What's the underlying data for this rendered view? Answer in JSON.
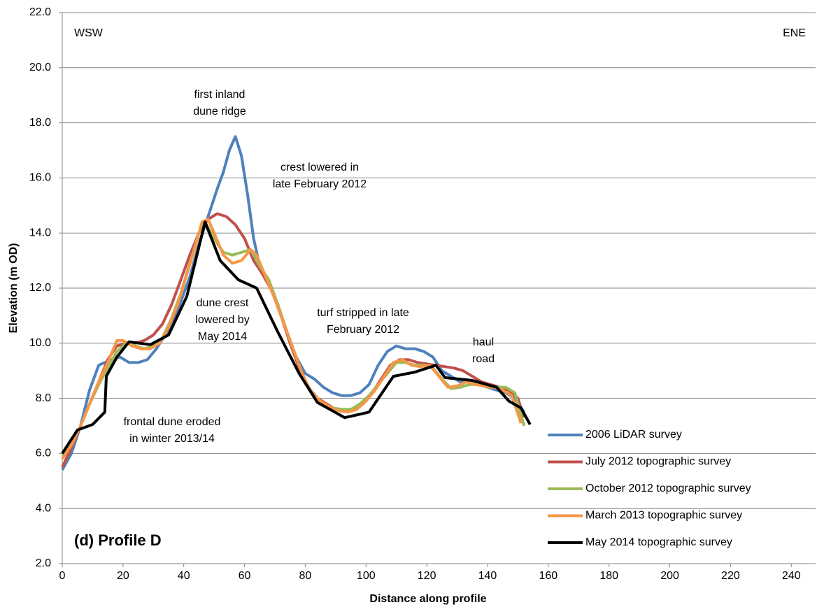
{
  "chart_data": {
    "type": "line",
    "x_label": "Distance along profile",
    "y_label": "Elevation (m OD)",
    "panel_label": "(d) Profile D",
    "xlim": [
      0,
      248
    ],
    "ylim": [
      2,
      22
    ],
    "xticks": [
      0,
      20,
      40,
      60,
      80,
      100,
      120,
      140,
      160,
      180,
      200,
      220,
      240
    ],
    "yticks": [
      {
        "value": 2,
        "label": "2.0"
      },
      {
        "value": 4,
        "label": "4.0"
      },
      {
        "value": 6,
        "label": "6.0"
      },
      {
        "value": 8,
        "label": "8.0"
      },
      {
        "value": 10,
        "label": "10.0"
      },
      {
        "value": 12,
        "label": "12.0"
      },
      {
        "value": 14,
        "label": "14.0"
      },
      {
        "value": 16,
        "label": "16.0"
      },
      {
        "value": 18,
        "label": "18.0"
      },
      {
        "value": 20,
        "label": "20.0"
      },
      {
        "value": 22,
        "label": "22.0"
      }
    ],
    "grid": true,
    "legend": "lower right",
    "annotations": [
      {
        "lines": [
          "WSW"
        ]
      },
      {
        "lines": [
          "ENE"
        ]
      },
      {
        "lines": [
          "first inland",
          "dune ridge"
        ]
      },
      {
        "lines": [
          "crest lowered in",
          "late February 2012"
        ]
      },
      {
        "lines": [
          "dune crest",
          "lowered by",
          "May 2014"
        ]
      },
      {
        "lines": [
          "turf stripped in late",
          "February 2012"
        ]
      },
      {
        "lines": [
          "haul",
          "road"
        ]
      },
      {
        "lines": [
          "frontal dune eroded",
          "in winter 2013/14"
        ]
      }
    ],
    "series": [
      {
        "name": "2006 LiDAR survey",
        "color": "#4f81bd",
        "x": [
          0,
          3,
          6,
          9,
          12,
          16,
          19,
          22,
          25,
          28,
          31,
          35,
          38,
          42,
          45,
          48,
          51,
          53,
          55,
          57,
          59,
          61,
          63,
          65,
          68,
          71,
          74,
          77,
          80,
          83,
          86,
          89,
          92,
          95,
          98,
          101,
          104,
          107,
          110,
          113,
          116,
          119,
          122,
          125,
          128,
          131,
          134,
          137,
          140,
          143,
          146,
          149,
          152
        ],
        "values": [
          5.4,
          6.0,
          7.0,
          8.3,
          9.2,
          9.4,
          9.5,
          9.3,
          9.3,
          9.4,
          9.8,
          10.5,
          11.2,
          12.4,
          13.6,
          14.6,
          15.6,
          16.2,
          17.0,
          17.5,
          16.8,
          15.4,
          13.8,
          12.8,
          12.2,
          11.4,
          10.4,
          9.5,
          8.9,
          8.7,
          8.4,
          8.2,
          8.1,
          8.1,
          8.2,
          8.5,
          9.2,
          9.7,
          9.9,
          9.8,
          9.8,
          9.7,
          9.5,
          9.0,
          8.8,
          8.6,
          8.6,
          8.5,
          8.4,
          8.3,
          8.2,
          8.0,
          7.5
        ]
      },
      {
        "name": "July 2012 topographic survey",
        "color": "#c0504d",
        "x": [
          0,
          3,
          6,
          9,
          12,
          15,
          18,
          21,
          24,
          27,
          30,
          33,
          36,
          39,
          42,
          45,
          48,
          51,
          54,
          57,
          60,
          63,
          66,
          69,
          72,
          75,
          78,
          81,
          84,
          87,
          90,
          93,
          96,
          99,
          102,
          105,
          108,
          111,
          114,
          117,
          120,
          123,
          126,
          129,
          132,
          135,
          138,
          141,
          144,
          147,
          150,
          152
        ],
        "values": [
          5.5,
          6.2,
          7.0,
          7.8,
          8.6,
          9.4,
          9.9,
          10.0,
          10.0,
          10.1,
          10.3,
          10.7,
          11.4,
          12.3,
          13.2,
          14.0,
          14.5,
          14.7,
          14.6,
          14.3,
          13.8,
          13.0,
          12.5,
          11.9,
          11.0,
          10.0,
          9.1,
          8.4,
          8.0,
          7.8,
          7.6,
          7.55,
          7.6,
          7.8,
          8.2,
          8.7,
          9.2,
          9.4,
          9.4,
          9.3,
          9.25,
          9.2,
          9.15,
          9.1,
          9.0,
          8.8,
          8.6,
          8.5,
          8.4,
          8.3,
          8.0,
          7.3
        ]
      },
      {
        "name": "October 2012 topographic survey",
        "color": "#9bbb59",
        "x": [
          0,
          3,
          6,
          9,
          12,
          15,
          18,
          21,
          24,
          27,
          30,
          33,
          36,
          39,
          42,
          45,
          47,
          50,
          53,
          56,
          59,
          62,
          65,
          68,
          71,
          74,
          77,
          80,
          83,
          86,
          89,
          92,
          95,
          98,
          101,
          104,
          107,
          110,
          113,
          116,
          119,
          122,
          125,
          128,
          131,
          134,
          137,
          140,
          143,
          146,
          149,
          152
        ],
        "values": [
          5.9,
          6.3,
          7.0,
          7.8,
          8.5,
          9.1,
          9.7,
          10.0,
          9.9,
          9.8,
          9.9,
          10.2,
          10.9,
          11.8,
          12.9,
          14.0,
          14.4,
          13.8,
          13.3,
          13.2,
          13.3,
          13.4,
          12.8,
          12.3,
          11.4,
          10.4,
          9.5,
          8.6,
          8.1,
          7.8,
          7.65,
          7.6,
          7.6,
          7.8,
          8.1,
          8.5,
          8.9,
          9.3,
          9.3,
          9.2,
          9.2,
          9.1,
          8.7,
          8.35,
          8.4,
          8.5,
          8.5,
          8.4,
          8.4,
          8.4,
          8.2,
          7.0
        ]
      },
      {
        "name": "March 2013 topographic survey",
        "color": "#f79646",
        "x": [
          0,
          3,
          6,
          9,
          12,
          15,
          18,
          20,
          23,
          26,
          29,
          32,
          35,
          38,
          41,
          44,
          46,
          48,
          50,
          53,
          56,
          59,
          62,
          64,
          67,
          70,
          73,
          76,
          79,
          82,
          85,
          88,
          91,
          94,
          97,
          100,
          103,
          106,
          109,
          112,
          115,
          118,
          121,
          124,
          127,
          130,
          133,
          136,
          139,
          142,
          145,
          148,
          151
        ],
        "values": [
          5.8,
          6.3,
          7.0,
          7.8,
          8.6,
          9.3,
          10.1,
          10.1,
          9.9,
          9.8,
          9.8,
          10.0,
          10.6,
          11.4,
          12.5,
          13.6,
          14.4,
          14.5,
          14.0,
          13.2,
          12.9,
          13.0,
          13.4,
          13.2,
          12.4,
          11.6,
          10.7,
          9.8,
          8.9,
          8.2,
          7.9,
          7.7,
          7.55,
          7.5,
          7.6,
          7.9,
          8.3,
          8.8,
          9.3,
          9.4,
          9.2,
          9.15,
          9.2,
          8.8,
          8.4,
          8.45,
          8.6,
          8.5,
          8.45,
          8.4,
          8.3,
          8.1,
          7.1
        ]
      },
      {
        "name": "May 2014 topographic survey",
        "color": "#000000",
        "x": [
          0,
          5,
          10,
          14,
          14.5,
          18,
          22,
          29,
          35,
          41,
          47,
          52,
          58,
          64,
          71,
          78,
          84,
          93,
          101,
          109,
          116,
          123,
          126,
          135,
          143,
          147,
          151,
          154
        ],
        "values": [
          6.0,
          6.85,
          7.05,
          7.5,
          8.8,
          9.5,
          10.05,
          9.95,
          10.3,
          11.7,
          14.4,
          13.0,
          12.3,
          12.0,
          10.4,
          8.9,
          7.85,
          7.3,
          7.5,
          8.8,
          8.95,
          9.2,
          8.75,
          8.65,
          8.4,
          7.9,
          7.65,
          7.05
        ]
      }
    ]
  }
}
